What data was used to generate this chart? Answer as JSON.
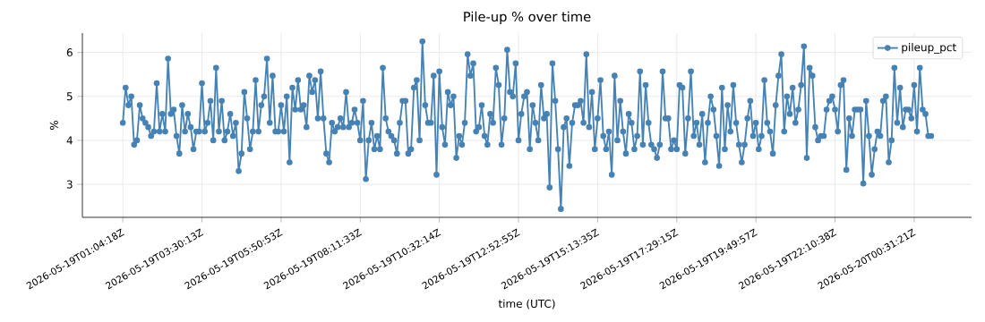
{
  "chart_data": {
    "type": "line",
    "title": "Pile-up % over time",
    "xlabel": "time (UTC)",
    "ylabel": "%",
    "categories": [
      "2026-05-19T01:04:18Z",
      null,
      null,
      null,
      null,
      null,
      null,
      null,
      null,
      null,
      null,
      null,
      null,
      null,
      null,
      null,
      null,
      null,
      null,
      null,
      null,
      null,
      null,
      null,
      null,
      null,
      null,
      null,
      "2026-05-19T03:30:13Z",
      null,
      null,
      null,
      null,
      null,
      null,
      null,
      null,
      null,
      null,
      null,
      null,
      null,
      null,
      null,
      null,
      null,
      null,
      null,
      null,
      null,
      null,
      null,
      null,
      null,
      null,
      null,
      "2026-05-19T05:50:53Z",
      null,
      null,
      null,
      null,
      null,
      null,
      null,
      null,
      null,
      null,
      null,
      null,
      null,
      null,
      null,
      null,
      null,
      null,
      null,
      null,
      null,
      null,
      null,
      null,
      null,
      null,
      null,
      "2026-05-19T08:11:33Z",
      null,
      null,
      null,
      null,
      null,
      null,
      null,
      null,
      null,
      null,
      null,
      null,
      null,
      null,
      null,
      null,
      null,
      null,
      null,
      null,
      null,
      null,
      null,
      null,
      null,
      null,
      null,
      "2026-05-19T10:32:14Z",
      null,
      null,
      null,
      null,
      null,
      null,
      null,
      null,
      null,
      null,
      null,
      null,
      null,
      null,
      null,
      null,
      null,
      null,
      null,
      null,
      null,
      null,
      null,
      null,
      null,
      null,
      null,
      "2026-05-19T12:52:55Z",
      null,
      null,
      null,
      null,
      null,
      null,
      null,
      null,
      null,
      null,
      null,
      null,
      null,
      null,
      null,
      null,
      null,
      null,
      null,
      null,
      null,
      null,
      null,
      null,
      null,
      null,
      null,
      "2026-05-19T15:13:35Z",
      null,
      null,
      null,
      null,
      null,
      null,
      null,
      null,
      null,
      null,
      null,
      null,
      null,
      null,
      null,
      null,
      null,
      null,
      null,
      null,
      null,
      null,
      null,
      null,
      null,
      null,
      null,
      "2026-05-19T17:29:15Z",
      null,
      null,
      null,
      null,
      null,
      null,
      null,
      null,
      null,
      null,
      null,
      null,
      null,
      null,
      null,
      null,
      null,
      null,
      null,
      null,
      null,
      null,
      null,
      null,
      null,
      null,
      null,
      "2026-05-19T19:49:57Z",
      null,
      null,
      null,
      null,
      null,
      null,
      null,
      null,
      null,
      null,
      null,
      null,
      null,
      null,
      null,
      null,
      null,
      null,
      null,
      null,
      null,
      null,
      null,
      null,
      null,
      null,
      null,
      "2026-05-19T22:10:38Z",
      null,
      null,
      null,
      null,
      null,
      null,
      null,
      null,
      null,
      null,
      null,
      null,
      null,
      null,
      null,
      null,
      null,
      null,
      null,
      null,
      null,
      null,
      null,
      null,
      null,
      null,
      null,
      "2026-05-20T00:31:21Z",
      null,
      null,
      null,
      null,
      null,
      null
    ],
    "series": [
      {
        "name": "pileup_pct",
        "color": "#4682b4",
        "values": [
          4.4,
          5.2,
          4.8,
          5.0,
          3.9,
          4.0,
          4.8,
          4.5,
          4.4,
          4.3,
          4.1,
          4.2,
          5.3,
          4.2,
          4.6,
          4.2,
          5.86,
          4.6,
          4.7,
          4.1,
          3.7,
          4.8,
          4.2,
          4.6,
          4.3,
          3.8,
          4.2,
          4.2,
          5.3,
          4.2,
          4.4,
          4.9,
          4.0,
          5.65,
          4.2,
          4.9,
          4.0,
          4.2,
          4.6,
          4.1,
          4.4,
          3.3,
          3.7,
          5.1,
          4.5,
          3.8,
          4.2,
          5.37,
          4.2,
          4.8,
          5.0,
          5.86,
          4.4,
          5.47,
          4.2,
          4.2,
          4.8,
          4.2,
          5.0,
          3.5,
          5.2,
          4.7,
          5.37,
          4.7,
          4.8,
          4.3,
          5.47,
          5.1,
          5.37,
          4.5,
          5.57,
          4.5,
          3.7,
          3.5,
          4.4,
          4.2,
          4.3,
          4.5,
          4.3,
          5.1,
          4.3,
          4.4,
          4.7,
          4.4,
          4.0,
          4.9,
          3.12,
          4.0,
          4.4,
          3.8,
          4.1,
          3.8,
          5.65,
          4.5,
          4.2,
          4.1,
          4.0,
          3.7,
          4.4,
          4.9,
          4.9,
          3.7,
          3.8,
          5.2,
          5.37,
          4.0,
          6.25,
          4.8,
          4.4,
          4.4,
          5.47,
          3.22,
          5.57,
          4.3,
          3.9,
          5.1,
          4.8,
          5.0,
          3.6,
          4.1,
          3.9,
          4.4,
          5.96,
          5.47,
          5.75,
          4.2,
          4.3,
          4.8,
          4.1,
          3.9,
          4.6,
          4.4,
          5.65,
          5.26,
          3.9,
          4.5,
          6.06,
          5.1,
          5.0,
          5.75,
          4.0,
          4.6,
          5.0,
          5.1,
          3.8,
          4.8,
          4.4,
          4.0,
          5.26,
          4.5,
          4.6,
          2.93,
          5.75,
          4.9,
          3.8,
          2.44,
          4.3,
          4.5,
          3.42,
          4.4,
          4.8,
          4.8,
          4.9,
          4.4,
          5.96,
          4.3,
          5.1,
          3.8,
          4.5,
          5.37,
          4.1,
          3.8,
          4.2,
          3.22,
          5.47,
          4.0,
          4.9,
          4.2,
          3.7,
          4.6,
          4.4,
          3.8,
          4.1,
          5.57,
          3.9,
          5.26,
          4.4,
          3.9,
          3.8,
          3.6,
          3.9,
          5.57,
          4.5,
          4.5,
          3.8,
          4.0,
          3.8,
          5.26,
          5.2,
          3.7,
          4.5,
          5.57,
          4.1,
          4.4,
          3.9,
          4.6,
          3.5,
          4.4,
          5.0,
          4.7,
          4.1,
          3.42,
          5.2,
          3.8,
          4.8,
          4.2,
          5.26,
          4.4,
          3.9,
          3.5,
          3.9,
          4.5,
          4.9,
          4.1,
          4.4,
          3.8,
          4.1,
          5.37,
          4.4,
          4.2,
          3.7,
          4.8,
          5.47,
          5.96,
          4.2,
          5.0,
          4.6,
          5.2,
          4.4,
          4.7,
          5.26,
          6.14,
          3.6,
          5.65,
          5.47,
          4.3,
          4.0,
          4.1,
          4.1,
          4.7,
          4.9,
          5.0,
          4.7,
          4.2,
          5.26,
          5.37,
          3.33,
          4.5,
          4.1,
          4.7,
          4.7,
          4.7,
          3.02,
          4.9,
          4.1,
          3.22,
          3.8,
          4.2,
          4.1,
          4.9,
          5.0,
          3.5,
          4.0,
          5.65,
          4.4,
          5.2,
          4.3,
          4.7,
          4.7,
          4.5,
          5.26,
          4.2,
          5.65,
          4.7,
          4.6,
          4.1,
          4.1
        ]
      }
    ],
    "ylim": [
      2.25,
      6.44
    ],
    "yticks": [
      3,
      4,
      5,
      6
    ],
    "grid": true,
    "legend": "top right",
    "marker": "circle",
    "line_style": "solid"
  }
}
